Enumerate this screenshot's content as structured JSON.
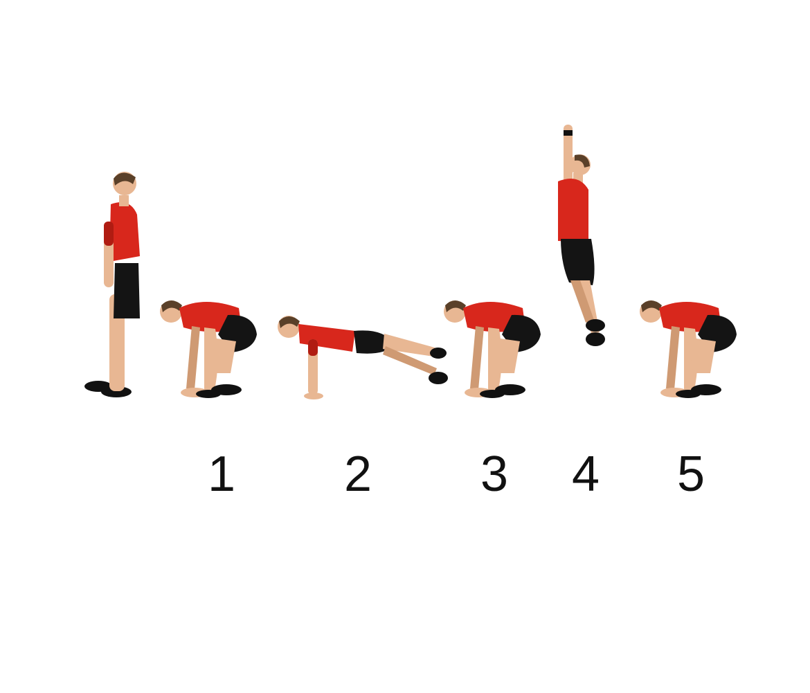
{
  "colors": {
    "shirt": "#d8271c",
    "shirt_shade": "#b01c12",
    "shorts": "#141414",
    "skin": "#e8b793",
    "skin_shade": "#cf9a73",
    "hair": "#5a4029",
    "shoe": "#111111",
    "number": "#111111",
    "background": "#ffffff"
  },
  "figures": [
    {
      "name": "standing",
      "icon": "person-standing-icon"
    },
    {
      "name": "squat",
      "icon": "person-squat-icon"
    },
    {
      "name": "plank",
      "icon": "person-plank-icon"
    },
    {
      "name": "squat",
      "icon": "person-squat-icon"
    },
    {
      "name": "jump",
      "icon": "person-jump-icon"
    },
    {
      "name": "squat",
      "icon": "person-squat-icon"
    }
  ],
  "step_labels": [
    "1",
    "2",
    "3",
    "4",
    "5"
  ]
}
